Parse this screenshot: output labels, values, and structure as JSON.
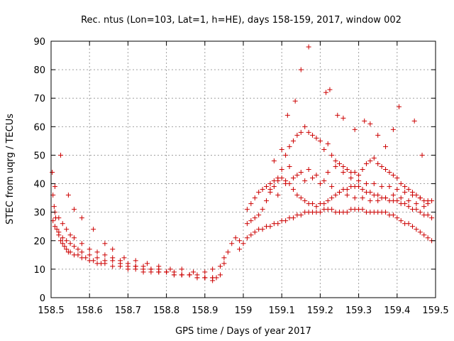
{
  "chart_data": {
    "type": "scatter",
    "title": "Rec. ntus (Lon=103, Lat=1, h=HE), days 158-159, 2017, window 002",
    "xlabel": "GPS time / Days of year 2017",
    "ylabel": "STEC from uqrg / TECUs",
    "xlim": [
      158.5,
      159.5
    ],
    "ylim": [
      0,
      90
    ],
    "xticks": [
      {
        "value": 158.5,
        "label": "158.5"
      },
      {
        "value": 158.6,
        "label": "158.6"
      },
      {
        "value": 158.7,
        "label": "158.7"
      },
      {
        "value": 158.8,
        "label": "158.8"
      },
      {
        "value": 158.9,
        "label": "158.9"
      },
      {
        "value": 159.0,
        "label": "159"
      },
      {
        "value": 159.1,
        "label": "159.1"
      },
      {
        "value": 159.2,
        "label": "159.2"
      },
      {
        "value": 159.3,
        "label": "159.3"
      },
      {
        "value": 159.4,
        "label": "159.4"
      },
      {
        "value": 159.5,
        "label": "159.5"
      }
    ],
    "yticks": [
      {
        "value": 0,
        "label": "0"
      },
      {
        "value": 10,
        "label": "10"
      },
      {
        "value": 20,
        "label": "20"
      },
      {
        "value": 30,
        "label": "30"
      },
      {
        "value": 40,
        "label": "40"
      },
      {
        "value": 50,
        "label": "50"
      },
      {
        "value": 60,
        "label": "60"
      },
      {
        "value": 70,
        "label": "70"
      },
      {
        "value": 80,
        "label": "80"
      },
      {
        "value": 90,
        "label": "90"
      }
    ],
    "grid": true,
    "marker": "plus",
    "color": "#cc0000",
    "series": [
      {
        "x": [
          158.503,
          158.505,
          158.508,
          158.512,
          158.515,
          158.52,
          158.525,
          158.53,
          158.535,
          158.54,
          158.545,
          158.55,
          158.56,
          158.57,
          158.58,
          158.59,
          158.6,
          158.61,
          158.62,
          158.63,
          158.64,
          158.66,
          158.68,
          158.7,
          158.72,
          158.74,
          158.76,
          158.78,
          158.8,
          158.82,
          158.84,
          158.86,
          158.88,
          158.9,
          158.92,
          158.94
        ],
        "y": [
          44,
          36,
          32,
          28,
          24,
          22,
          20,
          19,
          18,
          17,
          16,
          16,
          15,
          15,
          14,
          14,
          13,
          13,
          12,
          12,
          12,
          11,
          11,
          10,
          10,
          9,
          9,
          9,
          9,
          8,
          8,
          8,
          8,
          7,
          7,
          8
        ]
      },
      {
        "x": [
          158.505,
          158.51,
          158.52,
          158.53,
          158.54,
          158.55,
          158.56,
          158.57,
          158.58,
          158.6,
          158.62,
          158.64,
          158.66,
          158.68,
          158.7,
          158.72,
          158.74,
          158.76,
          158.78,
          158.8,
          158.82,
          158.84,
          158.86,
          158.88,
          158.9,
          158.92,
          158.93
        ],
        "y": [
          27,
          25,
          23,
          21,
          20,
          19,
          18,
          17,
          16,
          15,
          14,
          13,
          13,
          12,
          11,
          11,
          10,
          10,
          9,
          9,
          8,
          8,
          8,
          7,
          7,
          7,
          7
        ]
      },
      {
        "x": [
          158.51,
          158.52,
          158.53,
          158.54,
          158.55,
          158.56,
          158.58,
          158.6,
          158.62,
          158.64,
          158.66,
          158.68,
          158.7,
          158.72,
          158.74,
          158.76,
          158.78,
          158.8,
          158.82,
          158.84,
          158.86,
          158.88,
          158.9,
          158.92
        ],
        "y": [
          30,
          28,
          26,
          24,
          22,
          21,
          19,
          17,
          16,
          15,
          14,
          13,
          12,
          11,
          11,
          10,
          10,
          9,
          9,
          8,
          8,
          7,
          7,
          6
        ]
      },
      {
        "x": [
          158.51,
          158.525,
          158.545,
          158.56,
          158.58,
          158.61,
          158.64,
          158.66,
          158.69,
          158.72,
          158.75,
          158.78,
          158.81,
          158.84,
          158.87,
          158.9,
          158.92,
          158.94,
          158.95
        ],
        "y": [
          39,
          50,
          36,
          31,
          28,
          24,
          19,
          17,
          14,
          13,
          12,
          11,
          10,
          10,
          9,
          9,
          10,
          11,
          12
        ]
      },
      {
        "x": [
          158.95,
          158.96,
          158.97,
          158.98,
          158.99,
          159.01,
          159.02,
          159.03,
          159.04,
          159.05,
          159.06,
          159.07,
          159.08,
          159.09,
          159.1,
          159.11,
          159.12,
          159.13,
          159.14,
          159.15,
          159.16,
          159.17,
          159.18,
          159.19,
          159.2,
          159.21,
          159.22,
          159.23,
          159.24,
          159.25,
          159.26,
          159.27,
          159.28,
          159.29,
          159.3,
          159.31,
          159.32,
          159.33,
          159.34,
          159.35,
          159.36,
          159.37,
          159.38,
          159.39,
          159.4,
          159.41,
          159.42,
          159.43,
          159.44,
          159.45,
          159.46,
          159.47,
          159.48,
          159.49
        ],
        "y": [
          14,
          16,
          19,
          21,
          20,
          26,
          27,
          28,
          29,
          31,
          34,
          37,
          39,
          42,
          45,
          50,
          53,
          55,
          57,
          58,
          60,
          58,
          57,
          56,
          55,
          52,
          54,
          50,
          48,
          47,
          46,
          45,
          44,
          44,
          43,
          45,
          47,
          48,
          49,
          47,
          46,
          45,
          44,
          43,
          42,
          40,
          39,
          38,
          37,
          36,
          35,
          34,
          33,
          34
        ]
      },
      {
        "x": [
          158.99,
          159.0,
          159.01,
          159.02,
          159.03,
          159.04,
          159.05,
          159.06,
          159.07,
          159.08,
          159.09,
          159.1,
          159.11,
          159.12,
          159.13,
          159.14,
          159.15,
          159.16,
          159.17,
          159.18,
          159.19,
          159.2,
          159.21,
          159.22,
          159.23,
          159.24,
          159.25,
          159.26,
          159.27,
          159.28,
          159.29,
          159.3,
          159.31,
          159.32,
          159.33,
          159.34,
          159.35,
          159.36,
          159.37,
          159.38,
          159.39,
          159.4,
          159.41,
          159.42,
          159.43,
          159.44,
          159.45,
          159.46,
          159.47,
          159.48,
          159.49
        ],
        "y": [
          17,
          19,
          21,
          22,
          23,
          24,
          24,
          25,
          25,
          26,
          26,
          27,
          27,
          28,
          28,
          29,
          29,
          30,
          30,
          30,
          30,
          30,
          31,
          31,
          31,
          30,
          30,
          30,
          30,
          31,
          31,
          31,
          31,
          30,
          30,
          30,
          30,
          30,
          30,
          29,
          29,
          28,
          27,
          26,
          26,
          25,
          24,
          23,
          22,
          21,
          20
        ]
      },
      {
        "x": [
          159.01,
          159.02,
          159.03,
          159.04,
          159.05,
          159.06,
          159.07,
          159.08,
          159.09,
          159.1,
          159.11,
          159.12,
          159.13,
          159.14,
          159.15,
          159.16,
          159.17,
          159.18,
          159.19,
          159.2,
          159.21,
          159.22,
          159.23,
          159.24,
          159.25,
          159.26,
          159.27,
          159.28,
          159.29,
          159.3,
          159.31,
          159.32,
          159.33,
          159.34,
          159.35,
          159.36,
          159.37,
          159.38,
          159.39,
          159.4,
          159.41,
          159.42,
          159.43,
          159.44,
          159.45,
          159.46,
          159.47,
          159.48,
          159.49
        ],
        "y": [
          31,
          33,
          35,
          37,
          38,
          39,
          40,
          41,
          41,
          42,
          41,
          40,
          38,
          36,
          35,
          34,
          33,
          33,
          32,
          33,
          33,
          34,
          35,
          36,
          37,
          38,
          38,
          39,
          39,
          39,
          38,
          37,
          37,
          36,
          36,
          35,
          35,
          34,
          34,
          34,
          33,
          33,
          32,
          31,
          31,
          30,
          29,
          29,
          28
        ]
      },
      {
        "x": [
          159.08,
          159.1,
          159.12,
          159.14,
          159.16,
          159.18,
          159.2,
          159.22,
          159.24,
          159.26,
          159.28,
          159.3,
          159.32,
          159.34,
          159.36,
          159.38,
          159.4,
          159.42,
          159.44,
          159.46,
          159.48
        ],
        "y": [
          48,
          52,
          46,
          43,
          41,
          42,
          40,
          44,
          46,
          44,
          42,
          41,
          40,
          40,
          39,
          39,
          38,
          37,
          36,
          35,
          34
        ]
      },
      {
        "x": [
          159.115,
          159.135,
          159.15,
          159.17,
          159.215,
          159.225,
          159.245,
          159.26,
          159.29,
          159.315,
          159.33,
          159.35,
          159.37,
          159.39,
          159.405,
          159.445,
          159.465
        ],
        "y": [
          64,
          69,
          80,
          88,
          72,
          73,
          64,
          63,
          59,
          62,
          61,
          57,
          53,
          59,
          67,
          62,
          50
        ]
      },
      {
        "x": [
          159.07,
          159.09,
          159.11,
          159.13,
          159.15,
          159.17,
          159.19,
          159.21,
          159.23,
          159.25,
          159.27,
          159.29,
          159.31,
          159.33,
          159.35,
          159.37,
          159.39,
          159.41,
          159.43,
          159.45,
          159.47
        ],
        "y": [
          38,
          36,
          40,
          42,
          44,
          45,
          43,
          41,
          39,
          37,
          36,
          35,
          35,
          34,
          34,
          35,
          36,
          35,
          34,
          33,
          32
        ]
      }
    ]
  }
}
